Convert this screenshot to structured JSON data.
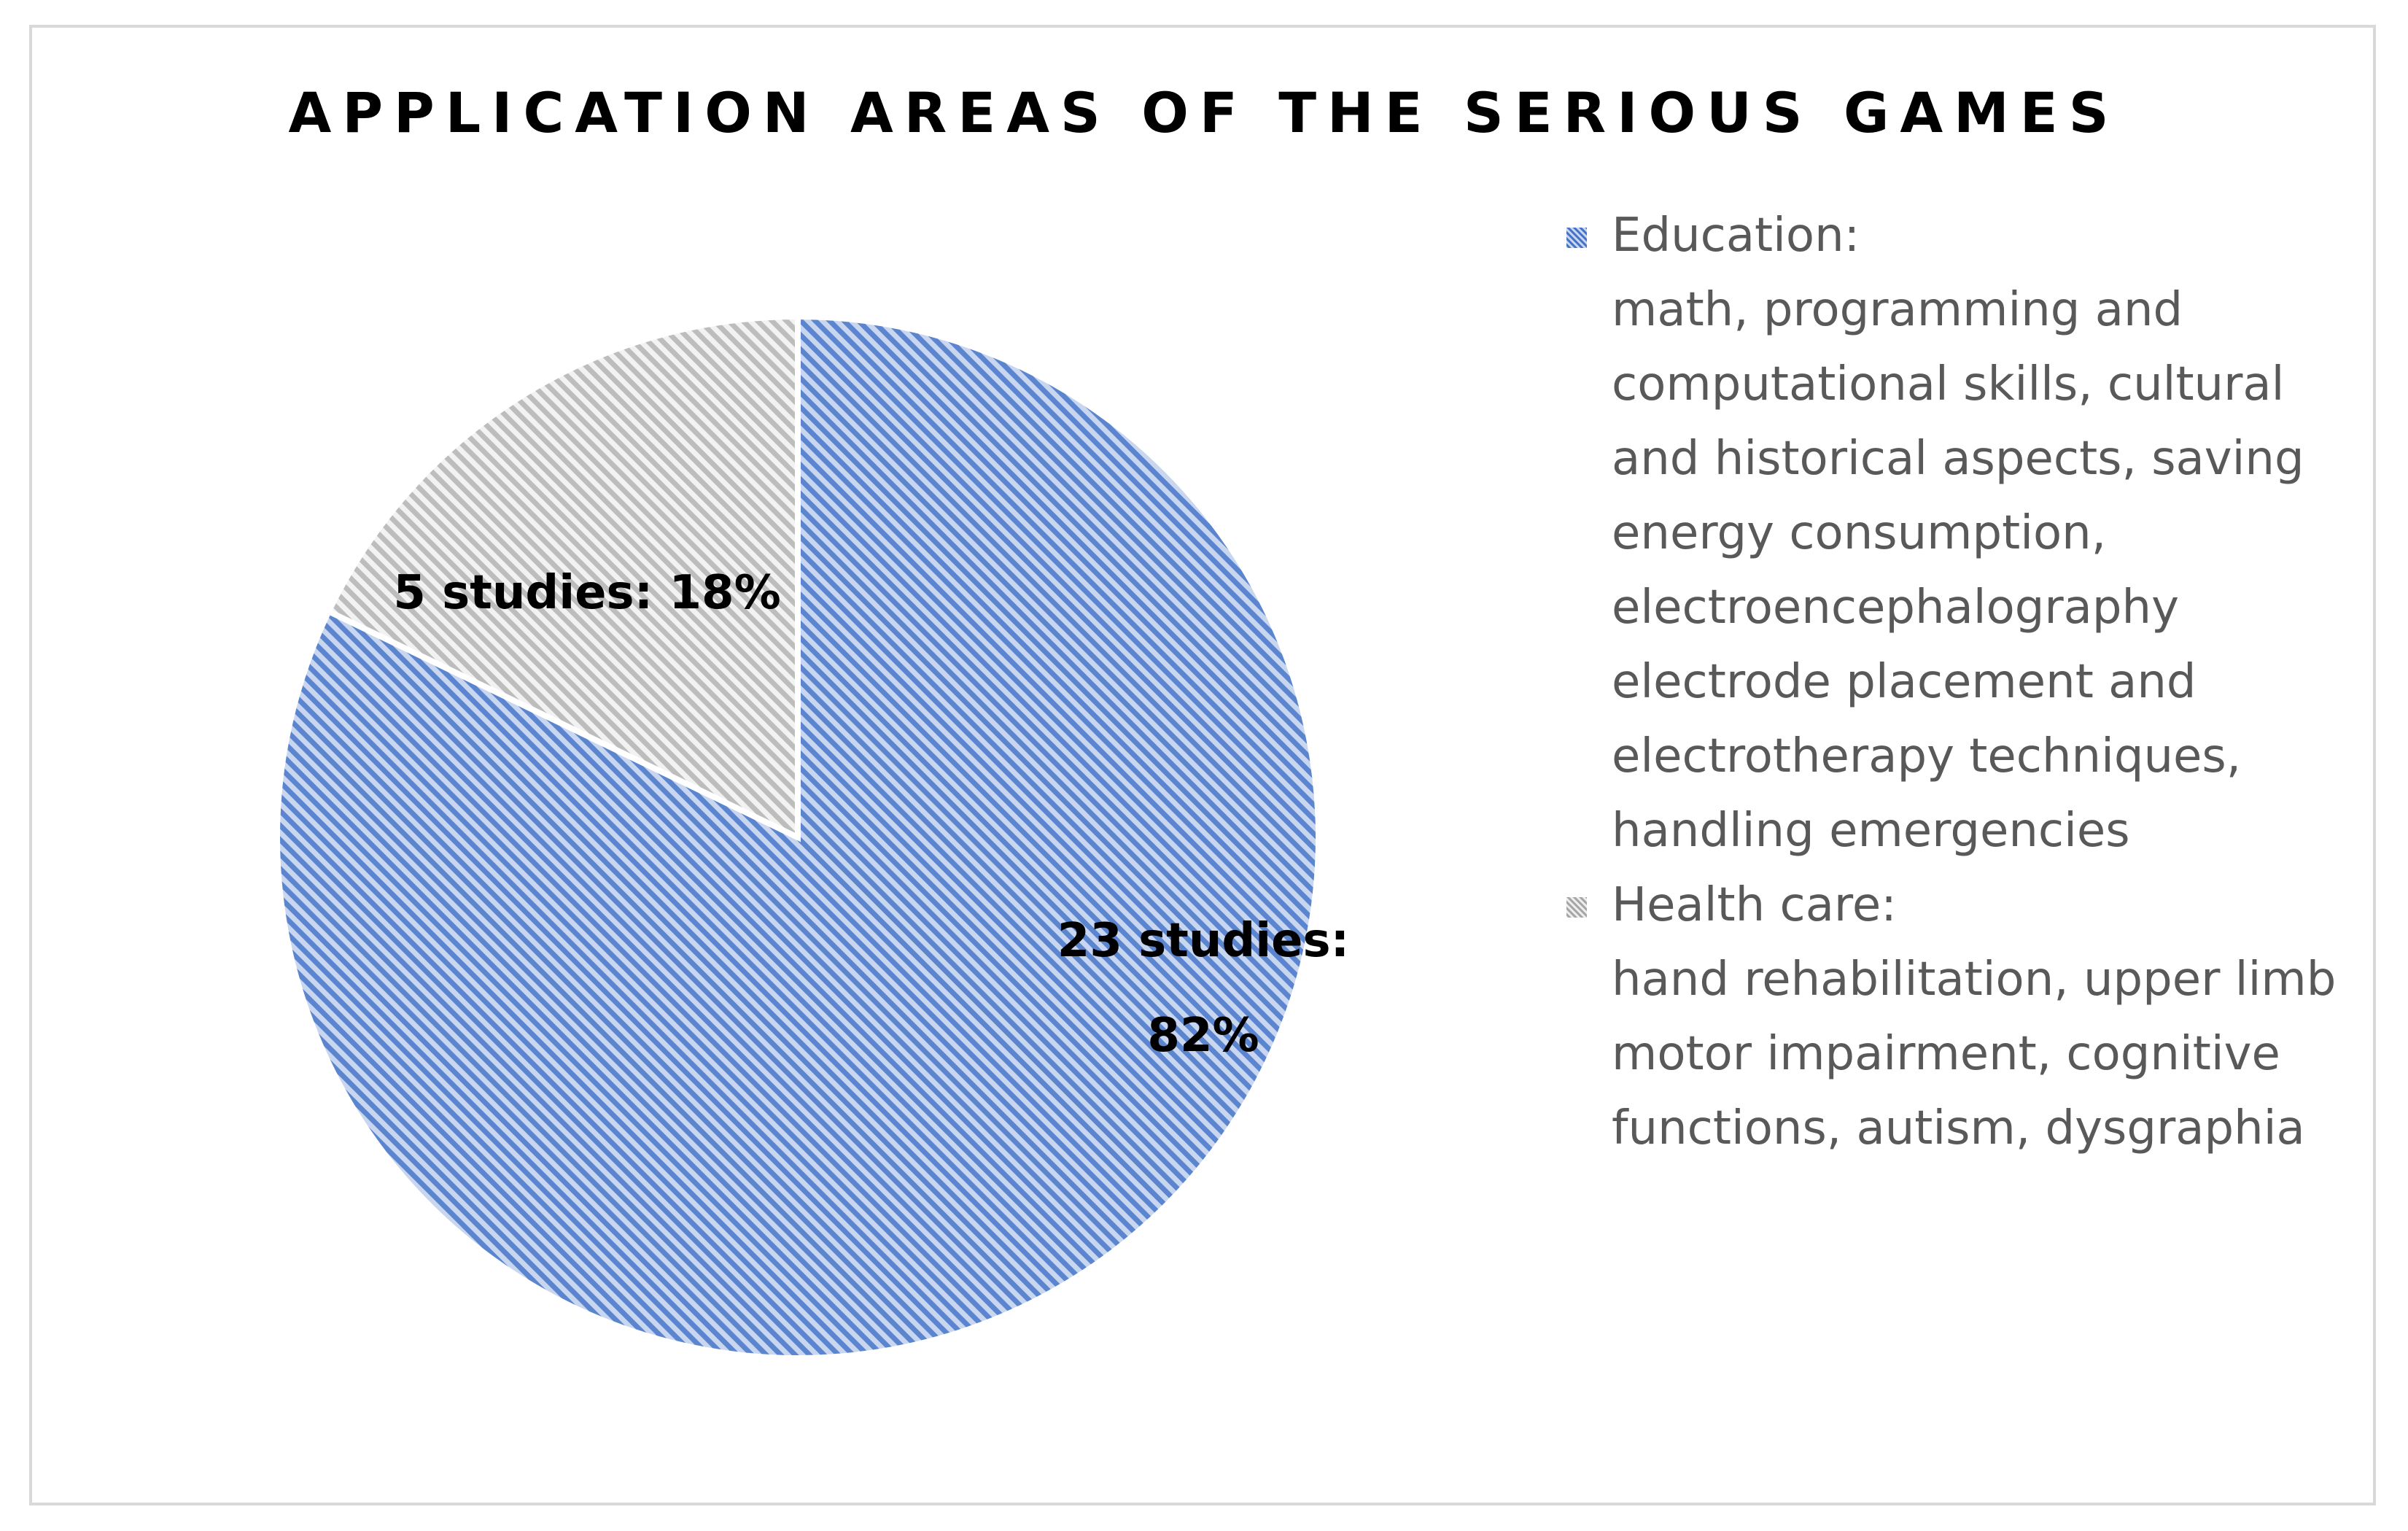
{
  "chart_data": {
    "type": "pie",
    "title": "APPLICATION AREAS OF THE SERIOUS GAMES",
    "categories": [
      "Education",
      "Health care"
    ],
    "values": [
      23,
      5
    ],
    "percentages": [
      82,
      18
    ],
    "data_labels": [
      "23 studies:\n82%",
      "5 studies: 18%"
    ],
    "legend_position": "right",
    "legend": [
      {
        "name": "Education:",
        "description": "math, programming and computational skills, cultural and historical aspects, saving energy consumption, electroencephalography electrode placement and electrotherapy techniques, handling emergencies",
        "color": "#4472c4"
      },
      {
        "name": "Health care:",
        "description": "hand rehabilitation, upper limb motor impairment, cognitive functions, autism, dysgraphia",
        "color": "#a5a5a5"
      }
    ],
    "colors": [
      "#4472c4",
      "#a5a5a5"
    ],
    "pattern": "diagonal-stripes"
  }
}
